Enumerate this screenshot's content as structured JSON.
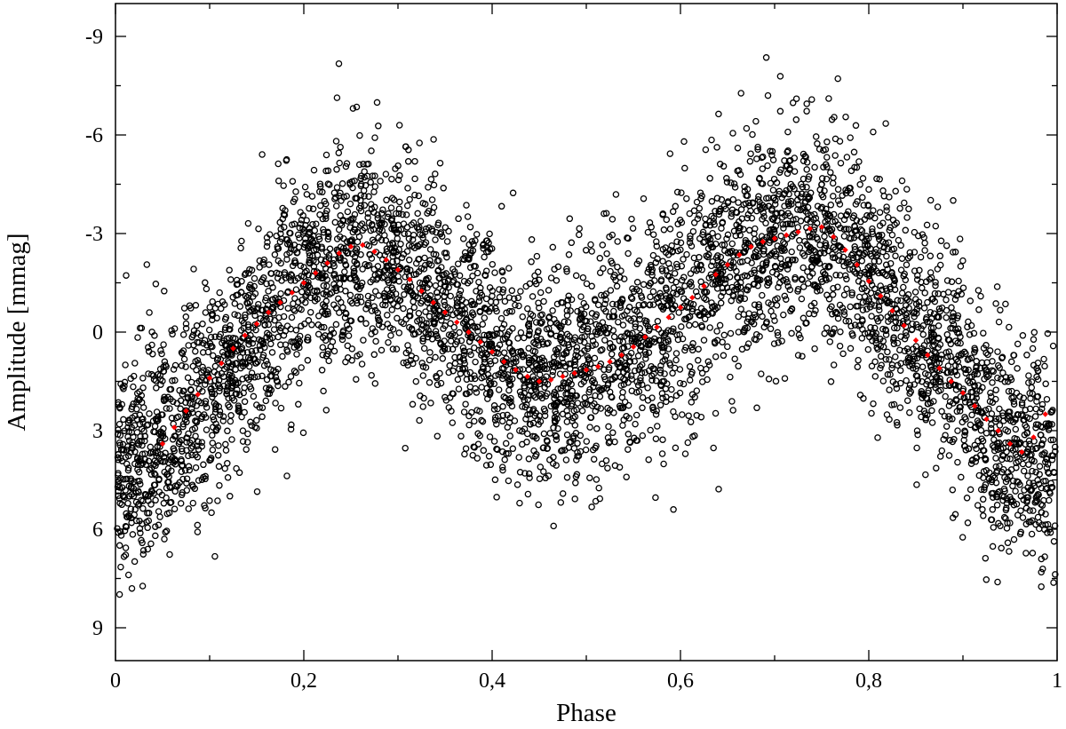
{
  "chart_data": {
    "type": "scatter",
    "title": "",
    "xlabel": "Phase",
    "ylabel": "Amplitude [mmag]",
    "xlim": [
      0,
      1
    ],
    "ylim": [
      10,
      -10
    ],
    "y_axis_inverted": true,
    "grid": false,
    "legend": "none",
    "x_ticks": [
      0,
      0.2,
      0.4,
      0.6,
      0.8,
      1
    ],
    "x_tick_labels": [
      "0",
      "0,2",
      "0,4",
      "0,6",
      "0,8",
      "1"
    ],
    "y_ticks": [
      -9,
      -6,
      -3,
      0,
      3,
      6,
      9
    ],
    "y_tick_labels": [
      "-9",
      "-6",
      "-3",
      "0",
      "3",
      "6",
      "9"
    ],
    "series": [
      {
        "kind": "observations",
        "marker": "open-circle",
        "color": "#000000",
        "approx_point_count": 16000,
        "scatter_sd_mmag": 1.7,
        "approx_range": [
          [
            0.0,
            4.5
          ],
          [
            0.1,
            1.8
          ],
          [
            0.2,
            -1.6
          ],
          [
            0.25,
            -2.7
          ],
          [
            0.3,
            -2.3
          ],
          [
            0.4,
            0.5
          ],
          [
            0.46,
            1.5
          ],
          [
            0.5,
            1.1
          ],
          [
            0.6,
            -0.8
          ],
          [
            0.7,
            -2.9
          ],
          [
            0.75,
            -3.2
          ],
          [
            0.8,
            -1.8
          ],
          [
            0.9,
            1.6
          ],
          [
            0.95,
            3.7
          ],
          [
            1.0,
            4.0
          ]
        ]
      },
      {
        "kind": "binned-mean",
        "marker": "filled-diamond",
        "color": "#ff0000",
        "x": [
          0.05,
          0.0625,
          0.075,
          0.0875,
          0.1,
          0.1125,
          0.125,
          0.1375,
          0.15,
          0.1625,
          0.175,
          0.1875,
          0.2,
          0.2125,
          0.225,
          0.2375,
          0.25,
          0.2625,
          0.275,
          0.2875,
          0.3,
          0.3125,
          0.325,
          0.3375,
          0.35,
          0.3625,
          0.375,
          0.3875,
          0.4,
          0.4125,
          0.425,
          0.4375,
          0.45,
          0.4625,
          0.475,
          0.4875,
          0.5,
          0.5125,
          0.525,
          0.5375,
          0.55,
          0.5625,
          0.575,
          0.5875,
          0.6,
          0.6125,
          0.625,
          0.6375,
          0.65,
          0.6625,
          0.675,
          0.6875,
          0.7,
          0.7125,
          0.725,
          0.7375,
          0.75,
          0.7625,
          0.775,
          0.7875,
          0.8,
          0.8125,
          0.825,
          0.8375,
          0.85,
          0.8625,
          0.875,
          0.8875,
          0.9,
          0.9125,
          0.925,
          0.9375,
          0.95,
          0.9625,
          0.975,
          0.9875
        ],
        "y": [
          3.4,
          2.9,
          2.4,
          1.9,
          1.4,
          0.95,
          0.5,
          0.1,
          -0.25,
          -0.6,
          -0.9,
          -1.2,
          -1.5,
          -1.8,
          -2.1,
          -2.4,
          -2.6,
          -2.65,
          -2.45,
          -2.2,
          -1.9,
          -1.6,
          -1.25,
          -0.9,
          -0.6,
          -0.3,
          0.0,
          0.3,
          0.6,
          0.9,
          1.15,
          1.35,
          1.5,
          1.45,
          1.35,
          1.25,
          1.15,
          1.05,
          0.9,
          0.7,
          0.45,
          0.15,
          -0.15,
          -0.45,
          -0.75,
          -1.05,
          -1.4,
          -1.75,
          -2.05,
          -2.35,
          -2.6,
          -2.75,
          -2.85,
          -2.95,
          -3.05,
          -3.15,
          -3.2,
          -2.9,
          -2.5,
          -2.05,
          -1.55,
          -1.1,
          -0.65,
          -0.2,
          0.25,
          0.7,
          1.1,
          1.5,
          1.85,
          2.25,
          2.65,
          3.0,
          3.4,
          3.65,
          3.2,
          2.5
        ]
      }
    ]
  }
}
